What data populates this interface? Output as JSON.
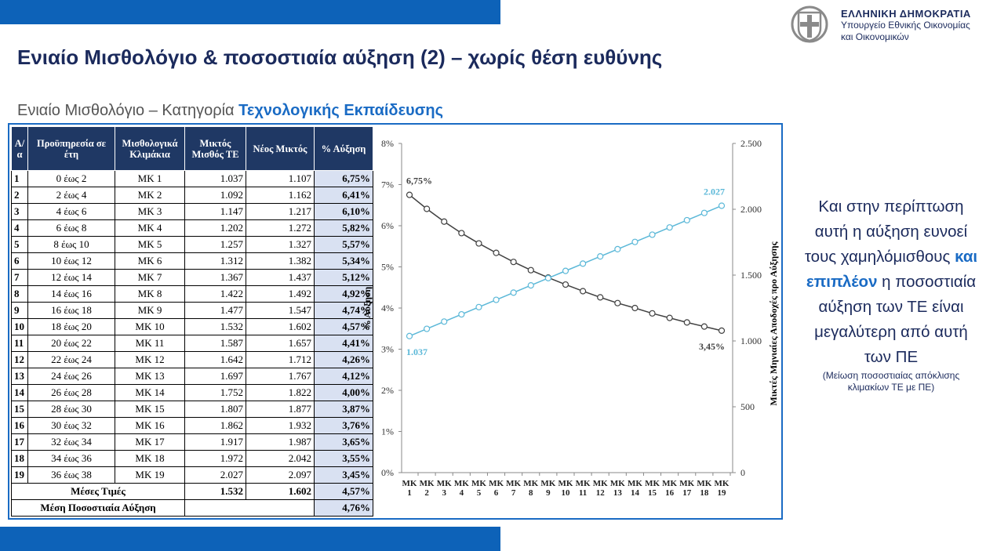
{
  "header": {
    "title": "Ενιαίο Μισθολόγιο & ποσοστιαία αύξηση (2) – χωρίς θέση ευθύνης",
    "subtitle": "Ενιαίο Μισθολόγιο – Κατηγορία ",
    "subtitle_bold": "Τεχνολογικής Εκπαίδευσης",
    "brand": "ΕΛΛΗΝΙΚΗ ΔΗΜΟΚΡΑΤΙΑ",
    "ministry_1": "Υπουργείο Εθνικής Οικονομίας",
    "ministry_2": "και Οικονομικών"
  },
  "table": {
    "header": [
      "Α/α",
      "Προϋπηρεσία σε έτη",
      "Μισθολογικά Κλιμάκια",
      "Μικτός Μισθός ΤΕ",
      "Νέος Μικτός",
      "% Αύξηση"
    ],
    "rows": [
      [
        "1",
        "0 έως 2",
        "ΜΚ 1",
        "1.037",
        "1.107",
        "6,75%"
      ],
      [
        "2",
        "2 έως 4",
        "ΜΚ 2",
        "1.092",
        "1.162",
        "6,41%"
      ],
      [
        "3",
        "4 έως 6",
        "ΜΚ 3",
        "1.147",
        "1.217",
        "6,10%"
      ],
      [
        "4",
        "6 έως 8",
        "ΜΚ 4",
        "1.202",
        "1.272",
        "5,82%"
      ],
      [
        "5",
        "8 έως 10",
        "ΜΚ 5",
        "1.257",
        "1.327",
        "5,57%"
      ],
      [
        "6",
        "10 έως 12",
        "ΜΚ 6",
        "1.312",
        "1.382",
        "5,34%"
      ],
      [
        "7",
        "12 έως 14",
        "ΜΚ 7",
        "1.367",
        "1.437",
        "5,12%"
      ],
      [
        "8",
        "14 έως 16",
        "ΜΚ 8",
        "1.422",
        "1.492",
        "4,92%"
      ],
      [
        "9",
        "16 έως 18",
        "ΜΚ 9",
        "1.477",
        "1.547",
        "4,74%"
      ],
      [
        "10",
        "18 έως 20",
        "ΜΚ 10",
        "1.532",
        "1.602",
        "4,57%"
      ],
      [
        "11",
        "20 έως 22",
        "ΜΚ 11",
        "1.587",
        "1.657",
        "4,41%"
      ],
      [
        "12",
        "22 έως 24",
        "ΜΚ 12",
        "1.642",
        "1.712",
        "4,26%"
      ],
      [
        "13",
        "24 έως 26",
        "ΜΚ 13",
        "1.697",
        "1.767",
        "4,12%"
      ],
      [
        "14",
        "26 έως 28",
        "ΜΚ 14",
        "1.752",
        "1.822",
        "4,00%"
      ],
      [
        "15",
        "28 έως 30",
        "ΜΚ 15",
        "1.807",
        "1.877",
        "3,87%"
      ],
      [
        "16",
        "30 έως 32",
        "ΜΚ 16",
        "1.862",
        "1.932",
        "3,76%"
      ],
      [
        "17",
        "32 έως 34",
        "ΜΚ 17",
        "1.917",
        "1.987",
        "3,65%"
      ],
      [
        "18",
        "34 έως 36",
        "ΜΚ 18",
        "1.972",
        "2.042",
        "3,55%"
      ],
      [
        "19",
        "36 έως 38",
        "ΜΚ 19",
        "2.027",
        "2.097",
        "3,45%"
      ]
    ],
    "average": [
      "Μέσες Τιμές",
      "1.532",
      "1.602",
      "4,57%"
    ],
    "mean_increase": [
      "Μέση Ποσοστιαία Αύξηση",
      "4,76%"
    ]
  },
  "chart_data": {
    "type": "line",
    "ylabel": "% Αύξηση",
    "y2label": "Μικτές Μηνιαίες Αποδοχές προ Αύξησης",
    "categories": [
      "ΜΚ 1",
      "ΜΚ 2",
      "ΜΚ 3",
      "ΜΚ 4",
      "ΜΚ 5",
      "ΜΚ 6",
      "ΜΚ 7",
      "ΜΚ 8",
      "ΜΚ 9",
      "ΜΚ 10",
      "ΜΚ 11",
      "ΜΚ 12",
      "ΜΚ 13",
      "ΜΚ 14",
      "ΜΚ 15",
      "ΜΚ 16",
      "ΜΚ 17",
      "ΜΚ 18",
      "ΜΚ 19"
    ],
    "ylim": [
      0,
      8
    ],
    "yticks": [
      {
        "value": 0,
        "label": "0%"
      },
      {
        "value": 1,
        "label": "1%"
      },
      {
        "value": 2,
        "label": "2%"
      },
      {
        "value": 3,
        "label": "3%"
      },
      {
        "value": 4,
        "label": "4%"
      },
      {
        "value": 5,
        "label": "5%"
      },
      {
        "value": 6,
        "label": "6%"
      },
      {
        "value": 7,
        "label": "7%"
      },
      {
        "value": 8,
        "label": "8%"
      }
    ],
    "y2lim": [
      0,
      2500
    ],
    "y2ticks": [
      0,
      500,
      {
        "value": 1000,
        "label": "1.000"
      },
      {
        "value": 1500,
        "label": "1.500"
      },
      {
        "value": 2000,
        "label": "2.000"
      },
      {
        "value": 2500,
        "label": "2.500"
      }
    ],
    "series": [
      {
        "color": "#404040",
        "values": [
          6.75,
          6.41,
          6.1,
          5.82,
          5.57,
          5.34,
          5.12,
          4.92,
          4.74,
          4.57,
          4.41,
          4.26,
          4.12,
          4.0,
          3.87,
          3.76,
          3.65,
          3.55,
          3.45
        ],
        "value_labels": [
          "6,75%",
          null,
          null,
          null,
          null,
          null,
          null,
          null,
          null,
          null,
          null,
          null,
          null,
          null,
          null,
          null,
          null,
          null,
          "3,45%"
        ]
      },
      {
        "color": "#5bb8d8",
        "axis": "y2",
        "values": [
          1037,
          1092,
          1147,
          1202,
          1257,
          1312,
          1367,
          1422,
          1477,
          1532,
          1587,
          1642,
          1697,
          1752,
          1807,
          1862,
          1917,
          1972,
          2027
        ],
        "value_labels": [
          "1.037",
          null,
          null,
          null,
          null,
          null,
          null,
          null,
          null,
          null,
          null,
          null,
          null,
          null,
          null,
          null,
          null,
          null,
          "2.027"
        ]
      }
    ]
  },
  "side": {
    "text_1": "Και στην περίπτωση αυτή η αύξηση ευνοεί τους χαμηλόμισθους ",
    "bold": "και επιπλέον",
    "text_2": " η ποσοστιαία αύξηση των ΤΕ είναι μεγαλύτερη από αυτή των ΠΕ",
    "note": "(Μείωση ποσοστιαίας απόκλισης κλιμακίων ΤΕ με ΠΕ)"
  }
}
